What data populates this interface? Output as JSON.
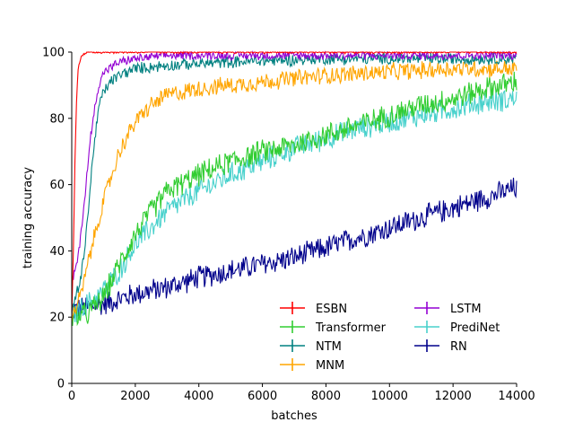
{
  "chart_data": {
    "type": "line",
    "title": "",
    "xlabel": "batches",
    "ylabel": "training accuracy",
    "xlim": [
      0,
      14000
    ],
    "ylim": [
      0,
      100
    ],
    "xticks": [
      0,
      2000,
      4000,
      6000,
      8000,
      10000,
      12000,
      14000
    ],
    "yticks": [
      0,
      20,
      40,
      60,
      80,
      100
    ],
    "grid": false,
    "legend_position": "lower-right",
    "legend_columns": 2,
    "series": [
      {
        "name": "ESBN",
        "color": "#ff0000",
        "noise": 0.5,
        "points": [
          [
            0,
            20
          ],
          [
            50,
            40
          ],
          [
            100,
            66
          ],
          [
            150,
            85
          ],
          [
            200,
            95
          ],
          [
            300,
            99
          ],
          [
            500,
            100
          ],
          [
            14000,
            100
          ]
        ]
      },
      {
        "name": "Transformer",
        "color": "#32cd32",
        "noise": 4,
        "points": [
          [
            0,
            20
          ],
          [
            500,
            21
          ],
          [
            1000,
            26
          ],
          [
            1500,
            36
          ],
          [
            2000,
            45
          ],
          [
            2500,
            52
          ],
          [
            3000,
            58
          ],
          [
            4000,
            63
          ],
          [
            5000,
            67
          ],
          [
            6000,
            70
          ],
          [
            7000,
            72
          ],
          [
            8000,
            75
          ],
          [
            9000,
            78
          ],
          [
            10000,
            81
          ],
          [
            11000,
            84
          ],
          [
            12000,
            86
          ],
          [
            13000,
            89
          ],
          [
            14000,
            91
          ]
        ]
      },
      {
        "name": "NTM",
        "color": "#008080",
        "noise": 2,
        "points": [
          [
            0,
            22
          ],
          [
            300,
            32
          ],
          [
            500,
            50
          ],
          [
            700,
            72
          ],
          [
            900,
            86
          ],
          [
            1200,
            91
          ],
          [
            1500,
            93
          ],
          [
            2000,
            95
          ],
          [
            3000,
            96
          ],
          [
            5000,
            97
          ],
          [
            8000,
            98
          ],
          [
            14000,
            98
          ]
        ]
      },
      {
        "name": "MNM",
        "color": "#ffa500",
        "noise": 3,
        "points": [
          [
            0,
            20
          ],
          [
            300,
            27
          ],
          [
            600,
            40
          ],
          [
            1000,
            55
          ],
          [
            1500,
            70
          ],
          [
            2000,
            79
          ],
          [
            2500,
            84
          ],
          [
            3000,
            87
          ],
          [
            4000,
            89
          ],
          [
            5000,
            90
          ],
          [
            6000,
            91
          ],
          [
            8000,
            93
          ],
          [
            10000,
            94
          ],
          [
            12000,
            95
          ],
          [
            14000,
            95
          ]
        ]
      },
      {
        "name": "LSTM",
        "color": "#9400d3",
        "noise": 1.5,
        "points": [
          [
            0,
            30
          ],
          [
            200,
            38
          ],
          [
            400,
            55
          ],
          [
            600,
            75
          ],
          [
            800,
            88
          ],
          [
            1000,
            94
          ],
          [
            1500,
            97
          ],
          [
            2000,
            98
          ],
          [
            3000,
            99
          ],
          [
            14000,
            99
          ]
        ]
      },
      {
        "name": "PrediNet",
        "color": "#48d1cc",
        "noise": 4,
        "points": [
          [
            0,
            20
          ],
          [
            500,
            24
          ],
          [
            1000,
            28
          ],
          [
            1500,
            34
          ],
          [
            2000,
            42
          ],
          [
            3000,
            52
          ],
          [
            4000,
            58
          ],
          [
            5000,
            63
          ],
          [
            6000,
            67
          ],
          [
            7000,
            71
          ],
          [
            8000,
            74
          ],
          [
            9000,
            77
          ],
          [
            10000,
            79
          ],
          [
            11000,
            81
          ],
          [
            12000,
            83
          ],
          [
            13000,
            85
          ],
          [
            14000,
            86
          ]
        ]
      },
      {
        "name": "RN",
        "color": "#00008b",
        "noise": 4,
        "points": [
          [
            0,
            22
          ],
          [
            1000,
            24
          ],
          [
            2000,
            27
          ],
          [
            3000,
            29
          ],
          [
            4000,
            32
          ],
          [
            5000,
            34
          ],
          [
            6000,
            36
          ],
          [
            7000,
            38
          ],
          [
            8000,
            41
          ],
          [
            9000,
            44
          ],
          [
            10000,
            47
          ],
          [
            11000,
            50
          ],
          [
            12000,
            53
          ],
          [
            13000,
            56
          ],
          [
            14000,
            59
          ]
        ]
      }
    ]
  }
}
